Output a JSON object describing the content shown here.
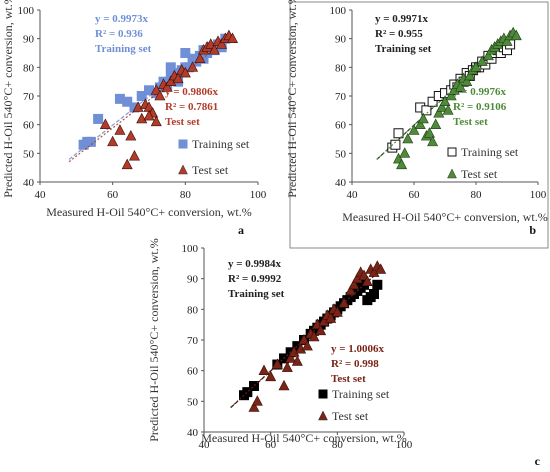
{
  "chart_data": [
    {
      "type": "scatter",
      "panel_label": "a",
      "xlabel": "Measured H-Oil 540°C+ conversion, wt.%",
      "ylabel": "Predicted H-Oil 540°C+ conversion, wt.%",
      "xlim": [
        40,
        100
      ],
      "ylim": [
        40,
        100
      ],
      "xticks": [
        "40",
        "60",
        "80",
        "100"
      ],
      "yticks": [
        "40",
        "50",
        "60",
        "70",
        "80",
        "90",
        "100"
      ],
      "legend_placement": "bottom-right",
      "series": [
        {
          "name": "Training set",
          "marker": "square-filled",
          "color": "#6f8fd6",
          "equation": "y = 0.9973x",
          "r2": "R² = 0.936",
          "set_label": "Training set",
          "fit_slope": 0.9973,
          "x": [
            52,
            53,
            54,
            56,
            62,
            64,
            66,
            68,
            70,
            72,
            73,
            74,
            75,
            76,
            77,
            78,
            79,
            80,
            81,
            82,
            83,
            84,
            85,
            85,
            86,
            87,
            88,
            89,
            90,
            91,
            80,
            78,
            76
          ],
          "y": [
            53,
            54,
            54,
            62,
            69,
            68,
            66,
            70,
            72,
            71,
            73,
            75,
            74,
            77,
            76,
            78,
            79,
            80,
            80,
            83,
            82,
            84,
            83,
            86,
            85,
            87,
            86,
            88,
            87,
            90,
            85,
            75,
            80
          ]
        },
        {
          "name": "Test set",
          "marker": "triangle-filled",
          "color": "#b23b2a",
          "equation": "y = 0.9806x",
          "r2": "R² = 0.7861",
          "set_label": "Test set",
          "fit_slope": 0.9806,
          "x": [
            58,
            60,
            62,
            64,
            65,
            66,
            67,
            68,
            69,
            70,
            71,
            72,
            73,
            74,
            75,
            76,
            77,
            78,
            79,
            80,
            82,
            84,
            85,
            86,
            87,
            88,
            89,
            90,
            91,
            92,
            93,
            70,
            72
          ],
          "y": [
            60,
            54,
            58,
            46,
            56,
            49,
            66,
            62,
            67,
            66,
            64,
            72,
            70,
            74,
            73,
            75,
            77,
            76,
            79,
            78,
            80,
            83,
            86,
            87,
            88,
            86,
            89,
            88,
            90,
            91,
            90,
            63,
            61
          ]
        }
      ]
    },
    {
      "type": "scatter",
      "panel_label": "b",
      "xlabel": "Measured H-Oil 540°C+ conversion, wt.%",
      "ylabel": "Predicted H-Oil 540°C+ conversion, wt.%",
      "xlim": [
        40,
        100
      ],
      "ylim": [
        40,
        100
      ],
      "xticks": [
        "40",
        "60",
        "80",
        "100"
      ],
      "yticks": [
        "40",
        "50",
        "60",
        "70",
        "80",
        "90",
        "100"
      ],
      "legend_placement": "bottom-right",
      "series": [
        {
          "name": "Training set",
          "marker": "square-open",
          "color": "#111111",
          "equation": "y = 0.9971x",
          "r2": "R² = 0.955",
          "set_label": "Training set",
          "fit_slope": 0.9971,
          "x": [
            53,
            54,
            55,
            62,
            64,
            66,
            68,
            70,
            72,
            73,
            74,
            75,
            76,
            77,
            78,
            79,
            80,
            81,
            82,
            83,
            84,
            85,
            86,
            87,
            88,
            89,
            90,
            91
          ],
          "y": [
            52,
            53,
            57,
            66,
            65,
            68,
            70,
            71,
            72,
            74,
            73,
            76,
            75,
            78,
            77,
            79,
            80,
            80,
            82,
            81,
            84,
            83,
            85,
            86,
            85,
            87,
            86,
            88
          ]
        },
        {
          "name": "Test set",
          "marker": "triangle-filled",
          "color": "#4f8a3a",
          "equation": "y = 0.9976x",
          "r2": "R² = 0.9106",
          "set_label": "Test set",
          "fit_slope": 0.9976,
          "x": [
            55,
            56,
            57,
            58,
            60,
            62,
            63,
            64,
            65,
            66,
            67,
            68,
            69,
            70,
            71,
            72,
            73,
            74,
            75,
            76,
            77,
            78,
            79,
            80,
            82,
            84,
            85,
            86,
            87,
            88,
            89,
            90,
            91,
            92,
            93
          ],
          "y": [
            48,
            46,
            50,
            55,
            58,
            60,
            62,
            56,
            57,
            54,
            60,
            64,
            66,
            68,
            65,
            70,
            72,
            74,
            73,
            76,
            75,
            77,
            79,
            80,
            82,
            84,
            86,
            87,
            88,
            89,
            90,
            89,
            91,
            92,
            91
          ]
        }
      ]
    },
    {
      "type": "scatter",
      "panel_label": "c",
      "xlabel": "Measured H-Oil 540°C+ conversion, wt.%",
      "ylabel": "Predicted H-Oil 540°C+ conversion, wt.%",
      "xlim": [
        40,
        100
      ],
      "ylim": [
        40,
        100
      ],
      "xticks": [
        "40",
        "60",
        "80",
        "100"
      ],
      "yticks": [
        "40",
        "50",
        "60",
        "70",
        "80",
        "90",
        "100"
      ],
      "legend_placement": "bottom-right",
      "series": [
        {
          "name": "Training set",
          "marker": "square-filled",
          "color": "#000000",
          "equation": "y = 0.9984x",
          "r2": "R² = 0.9992",
          "set_label": "Training set",
          "fit_slope": 0.9984,
          "x": [
            52,
            53,
            55,
            62,
            64,
            66,
            68,
            70,
            72,
            73,
            74,
            75,
            76,
            77,
            78,
            79,
            80,
            81,
            82,
            83,
            84,
            85,
            86,
            87,
            88,
            89,
            90,
            91,
            92
          ],
          "y": [
            52,
            53,
            55,
            62,
            64,
            66,
            68,
            70,
            72,
            73,
            74,
            75,
            76,
            77,
            78,
            79,
            80,
            81,
            82,
            83,
            84,
            85,
            86,
            87,
            88,
            83,
            84,
            85,
            88
          ]
        },
        {
          "name": "Test set",
          "marker": "triangle-filled",
          "color": "#7a2418",
          "equation": "y = 1.0006x",
          "r2": "R² = 0.998",
          "set_label": "Test set",
          "fit_slope": 1.0006,
          "x": [
            55,
            56,
            58,
            60,
            62,
            64,
            65,
            66,
            67,
            68,
            69,
            70,
            71,
            72,
            73,
            74,
            75,
            76,
            77,
            78,
            79,
            80,
            82,
            84,
            85,
            86,
            87,
            88,
            89,
            90,
            91,
            92,
            93
          ],
          "y": [
            48,
            50,
            60,
            58,
            62,
            55,
            61,
            64,
            66,
            63,
            67,
            70,
            68,
            72,
            71,
            75,
            73,
            76,
            78,
            77,
            80,
            79,
            82,
            86,
            88,
            90,
            92,
            91,
            89,
            93,
            92,
            94,
            93
          ]
        }
      ]
    }
  ]
}
